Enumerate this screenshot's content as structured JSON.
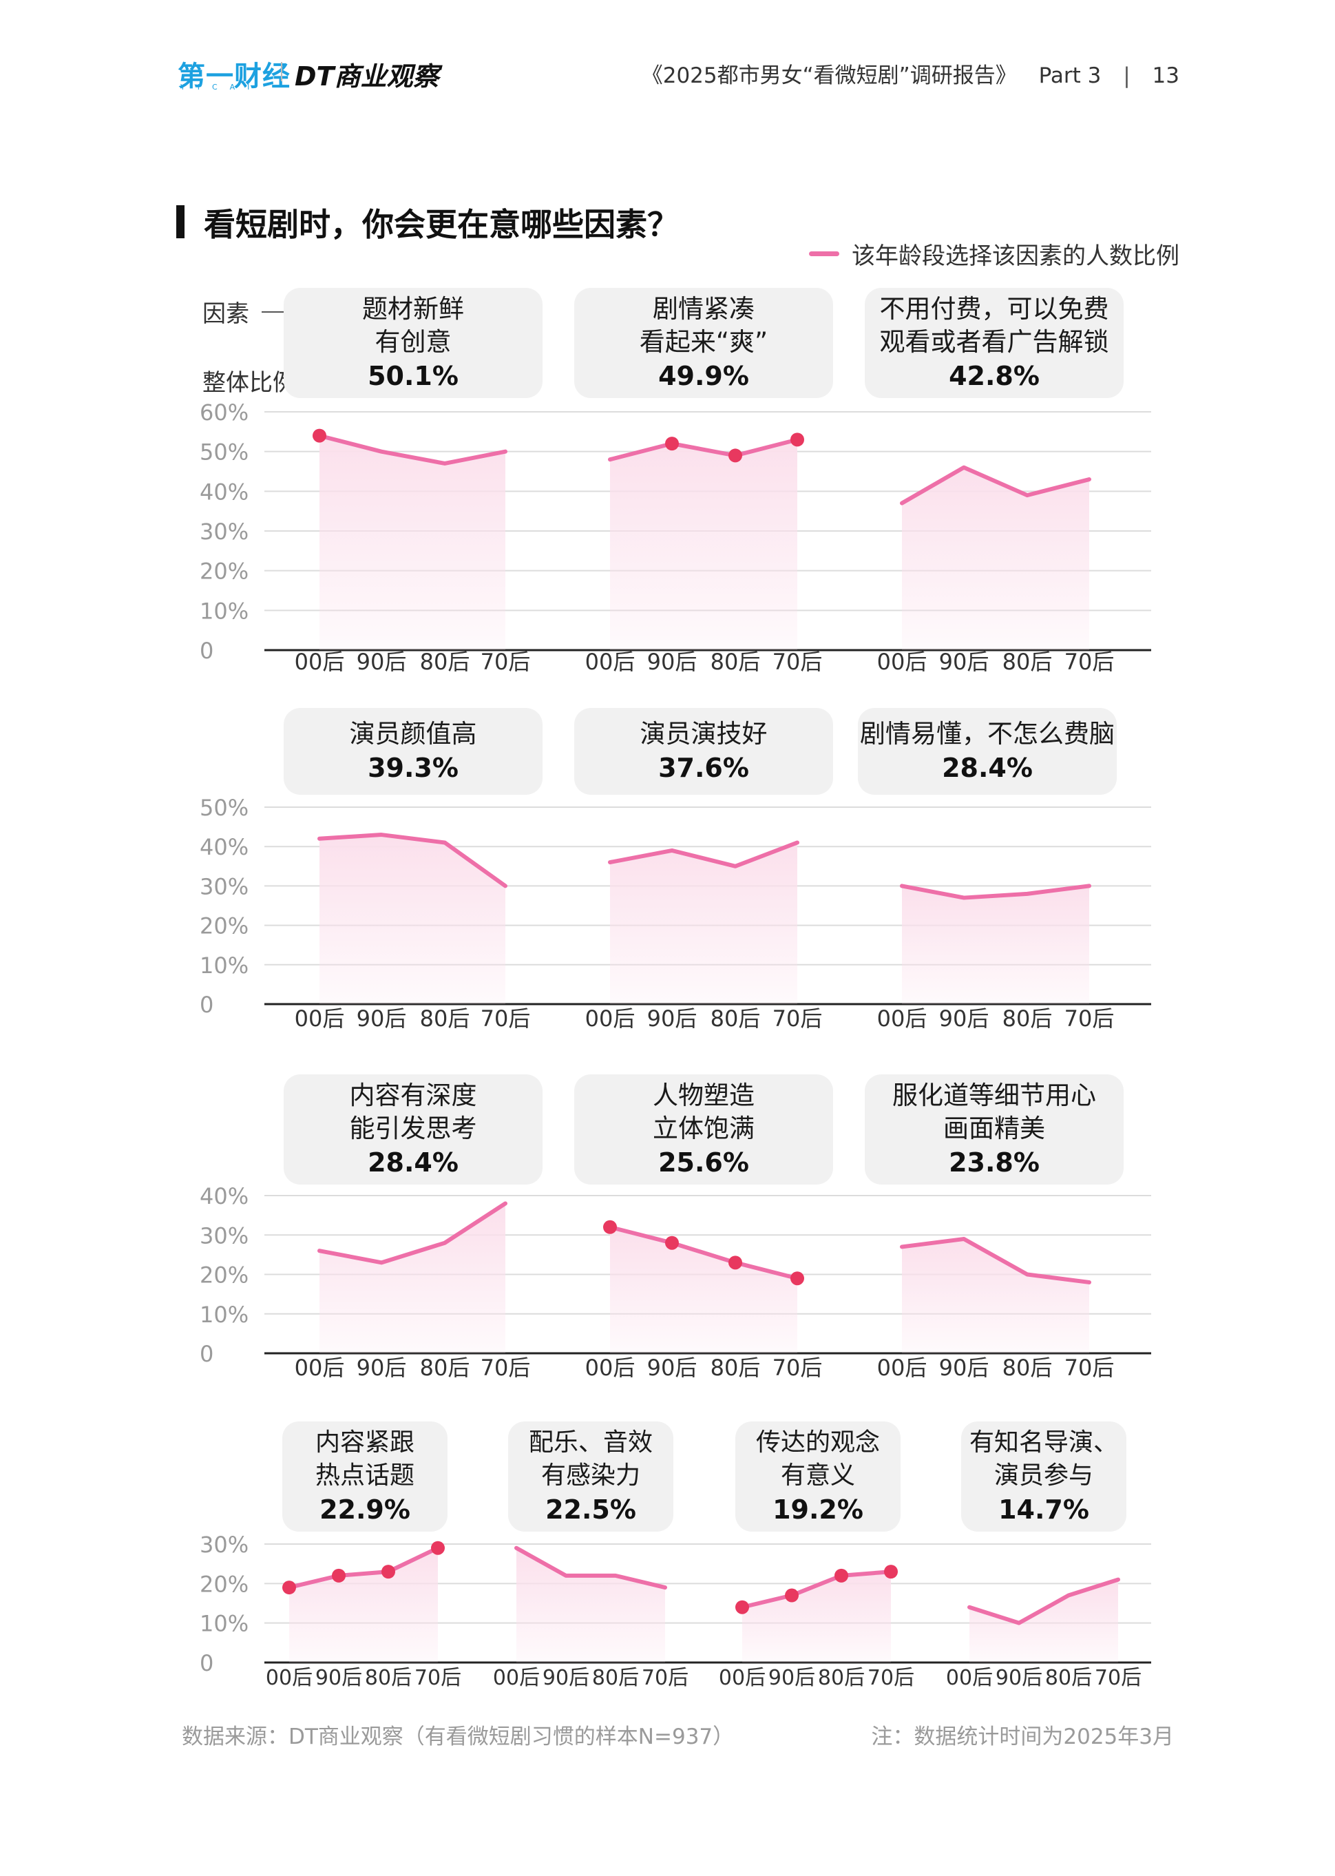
{
  "header": {
    "logo_primary": "第一财经",
    "logo_primary_sub": "YICAI",
    "logo_secondary": "DT商业观察",
    "report_title": "《2025都市男女“看微短剧”调研报告》",
    "part": "Part 3",
    "page_number": "13"
  },
  "title": "看短剧时，你会更在意哪些因素？",
  "legend_label": "该年龄段选择该因素的人数比例",
  "annotations": {
    "factor": "因素",
    "overall": "整体比例"
  },
  "colors": {
    "line": "#ee6fa8",
    "marker": "#e8385f",
    "fill": "#fbe0ec",
    "grid": "#dcdcdc",
    "axis": "#222222",
    "card": "#f1f1f1"
  },
  "chart_data": [
    {
      "type": "line",
      "factor": [
        "题材新鲜",
        "有创意"
      ],
      "overall": "50.1%",
      "x": [
        "00后",
        "90后",
        "80后",
        "70后"
      ],
      "values": [
        54,
        50,
        47,
        50
      ],
      "markers": [
        true,
        false,
        false,
        false
      ],
      "yticks": [
        "0",
        "10%",
        "20%",
        "30%",
        "40%",
        "50%",
        "60%"
      ],
      "ylim": [
        0,
        60
      ]
    },
    {
      "type": "line",
      "factor": [
        "剧情紧凑",
        "看起来“爽”"
      ],
      "overall": "49.9%",
      "x": [
        "00后",
        "90后",
        "80后",
        "70后"
      ],
      "values": [
        48,
        52,
        49,
        53
      ],
      "markers": [
        false,
        true,
        true,
        true
      ],
      "ylim": [
        0,
        60
      ]
    },
    {
      "type": "line",
      "factor": [
        "不用付费，可以免费",
        "观看或者看广告解锁"
      ],
      "overall": "42.8%",
      "x": [
        "00后",
        "90后",
        "80后",
        "70后"
      ],
      "values": [
        37,
        46,
        39,
        43
      ],
      "markers": [
        false,
        false,
        false,
        false
      ],
      "ylim": [
        0,
        60
      ]
    },
    {
      "type": "line",
      "factor": [
        "演员颜值高"
      ],
      "overall": "39.3%",
      "x": [
        "00后",
        "90后",
        "80后",
        "70后"
      ],
      "values": [
        42,
        43,
        41,
        30
      ],
      "markers": [
        false,
        false,
        false,
        false
      ],
      "yticks": [
        "0",
        "10%",
        "20%",
        "30%",
        "40%",
        "50%"
      ],
      "ylim": [
        0,
        50
      ]
    },
    {
      "type": "line",
      "factor": [
        "演员演技好"
      ],
      "overall": "37.6%",
      "x": [
        "00后",
        "90后",
        "80后",
        "70后"
      ],
      "values": [
        36,
        39,
        35,
        41
      ],
      "markers": [
        false,
        false,
        false,
        false
      ],
      "ylim": [
        0,
        50
      ]
    },
    {
      "type": "line",
      "factor": [
        "剧情易懂，不怎么费脑"
      ],
      "overall": "28.4%",
      "x": [
        "00后",
        "90后",
        "80后",
        "70后"
      ],
      "values": [
        30,
        27,
        28,
        30
      ],
      "markers": [
        false,
        false,
        false,
        false
      ],
      "ylim": [
        0,
        50
      ]
    },
    {
      "type": "line",
      "factor": [
        "内容有深度",
        "能引发思考"
      ],
      "overall": "28.4%",
      "x": [
        "00后",
        "90后",
        "80后",
        "70后"
      ],
      "values": [
        26,
        23,
        28,
        38
      ],
      "markers": [
        false,
        false,
        false,
        false
      ],
      "yticks": [
        "0",
        "10%",
        "20%",
        "30%",
        "40%"
      ],
      "ylim": [
        0,
        40
      ]
    },
    {
      "type": "line",
      "factor": [
        "人物塑造",
        "立体饱满"
      ],
      "overall": "25.6%",
      "x": [
        "00后",
        "90后",
        "80后",
        "70后"
      ],
      "values": [
        32,
        28,
        23,
        19
      ],
      "markers": [
        true,
        true,
        true,
        true
      ],
      "ylim": [
        0,
        40
      ]
    },
    {
      "type": "line",
      "factor": [
        "服化道等细节用心",
        "画面精美"
      ],
      "overall": "23.8%",
      "x": [
        "00后",
        "90后",
        "80后",
        "70后"
      ],
      "values": [
        27,
        29,
        20,
        18
      ],
      "markers": [
        false,
        false,
        false,
        false
      ],
      "ylim": [
        0,
        40
      ]
    },
    {
      "type": "line",
      "factor": [
        "内容紧跟",
        "热点话题"
      ],
      "overall": "22.9%",
      "x": [
        "00后",
        "90后",
        "80后",
        "70后"
      ],
      "values": [
        19,
        22,
        23,
        29
      ],
      "markers": [
        true,
        true,
        true,
        true
      ],
      "yticks": [
        "0",
        "10%",
        "20%",
        "30%"
      ],
      "ylim": [
        0,
        30
      ]
    },
    {
      "type": "line",
      "factor": [
        "配乐、音效",
        "有感染力"
      ],
      "overall": "22.5%",
      "x": [
        "00后",
        "90后",
        "80后",
        "70后"
      ],
      "values": [
        29,
        22,
        22,
        19
      ],
      "markers": [
        false,
        false,
        false,
        false
      ],
      "ylim": [
        0,
        30
      ]
    },
    {
      "type": "line",
      "factor": [
        "传达的观念",
        "有意义"
      ],
      "overall": "19.2%",
      "x": [
        "00后",
        "90后",
        "80后",
        "70后"
      ],
      "values": [
        14,
        17,
        22,
        23
      ],
      "markers": [
        true,
        true,
        true,
        true
      ],
      "ylim": [
        0,
        30
      ]
    },
    {
      "type": "line",
      "factor": [
        "有知名导演、",
        "演员参与"
      ],
      "overall": "14.7%",
      "x": [
        "00后",
        "90后",
        "80后",
        "70后"
      ],
      "values": [
        14,
        10,
        17,
        21
      ],
      "markers": [
        false,
        false,
        false,
        false
      ],
      "ylim": [
        0,
        30
      ]
    }
  ],
  "footer": {
    "source": "数据来源：DT商业观察（有看微短剧习惯的样本N=937）",
    "note": "注：数据统计时间为2025年3月"
  }
}
